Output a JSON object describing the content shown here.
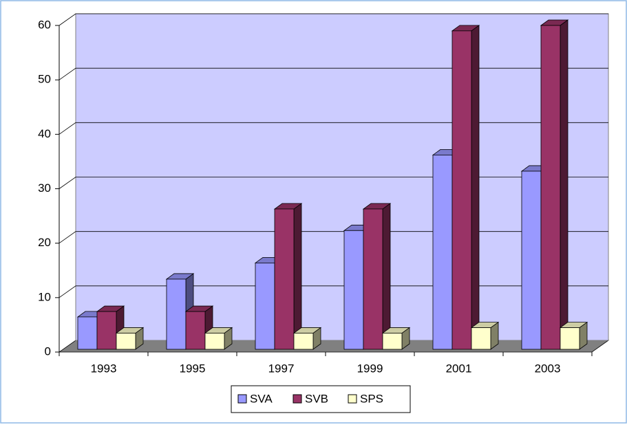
{
  "chart_data": {
    "type": "bar3d",
    "categories": [
      "1993",
      "1995",
      "1997",
      "1999",
      "2001",
      "2003"
    ],
    "series": [
      {
        "name": "SVA",
        "color": "#9999ff",
        "values": [
          6,
          13,
          16,
          22,
          36,
          33
        ]
      },
      {
        "name": "SVB",
        "color": "#993366",
        "values": [
          7,
          7,
          26,
          26,
          59,
          60
        ]
      },
      {
        "name": "SPS",
        "color": "#ffffcc",
        "values": [
          3,
          3,
          3,
          3,
          4,
          4
        ]
      }
    ],
    "ylim": [
      0,
      60
    ],
    "yticks": [
      0,
      10,
      20,
      30,
      40,
      50,
      60
    ],
    "grid": true,
    "legend": "bottom"
  }
}
